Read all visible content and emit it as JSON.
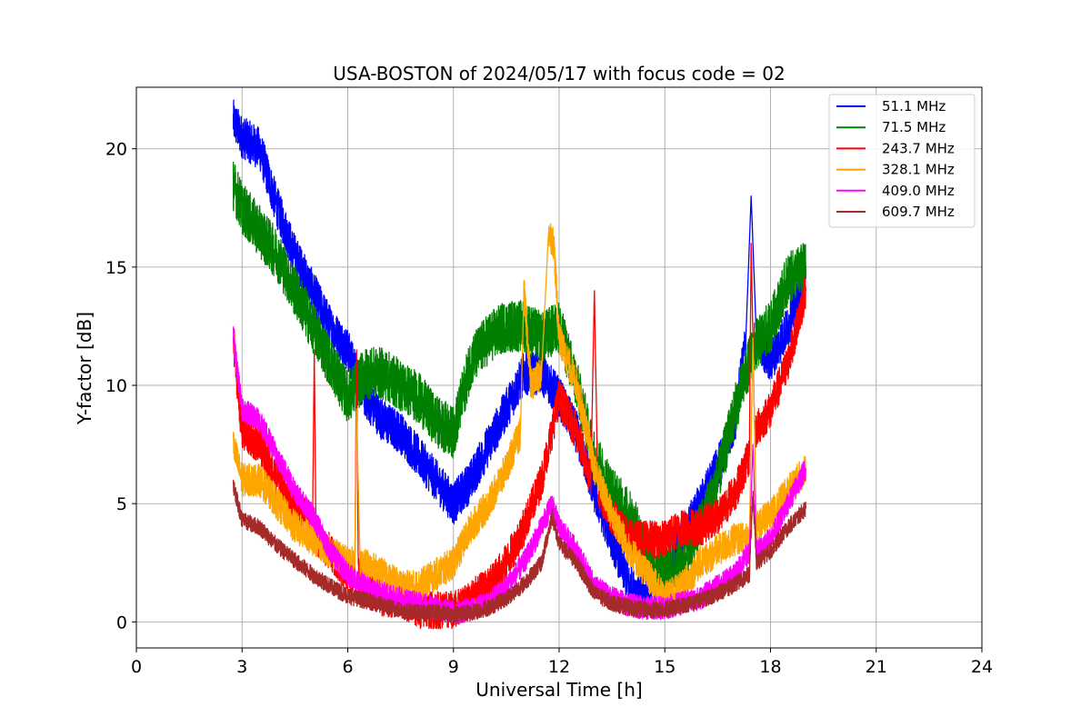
{
  "chart_data": {
    "type": "line",
    "title": "USA-BOSTON of 2024/05/17 with focus code = 02",
    "xlabel": "Universal Time [h]",
    "ylabel": "Y-factor [dB]",
    "xlim": [
      0,
      24
    ],
    "ylim": [
      -1.1,
      22.6
    ],
    "xticks": [
      0,
      3,
      6,
      9,
      12,
      15,
      18,
      21,
      24
    ],
    "yticks": [
      0,
      5,
      10,
      15,
      20
    ],
    "grid": true,
    "legend_position": "top-right",
    "series": [
      {
        "name": " 51.1 MHz",
        "color": "#0000ff",
        "noise": 0.9,
        "x": [
          2.75,
          3.0,
          3.5,
          4.0,
          4.5,
          5.0,
          5.5,
          6.0,
          6.5,
          7.0,
          7.5,
          8.0,
          8.5,
          9.0,
          9.5,
          10.0,
          10.5,
          11.0,
          11.5,
          12.0,
          12.5,
          13.0,
          13.5,
          14.0,
          14.5,
          15.0,
          15.5,
          16.0,
          16.5,
          17.0,
          17.3,
          17.45,
          17.6,
          18.0,
          18.5,
          19.0
        ],
        "y": [
          21.2,
          20.5,
          20.0,
          17.5,
          15.5,
          14.0,
          12.5,
          11.5,
          9.5,
          8.5,
          8.0,
          7.0,
          6.0,
          5.0,
          6.0,
          7.5,
          9.0,
          10.5,
          10.5,
          9.5,
          8.0,
          5.5,
          3.5,
          1.5,
          1.0,
          2.0,
          3.5,
          5.0,
          6.5,
          8.5,
          12.0,
          18.0,
          12.0,
          11.0,
          12.5,
          14.5
        ]
      },
      {
        "name": " 71.5 MHz",
        "color": "#008000",
        "noise": 1.1,
        "x": [
          2.75,
          3.0,
          3.5,
          4.0,
          4.5,
          5.0,
          5.5,
          6.0,
          6.5,
          7.0,
          7.5,
          8.0,
          8.5,
          9.0,
          9.5,
          10.0,
          10.5,
          11.0,
          11.5,
          12.0,
          12.5,
          13.0,
          13.5,
          14.0,
          14.5,
          15.0,
          15.5,
          16.0,
          16.5,
          17.0,
          17.5,
          18.0,
          18.5,
          19.0
        ],
        "y": [
          18.5,
          17.5,
          16.5,
          15.5,
          14.0,
          12.5,
          11.0,
          9.5,
          10.5,
          10.5,
          10.0,
          9.5,
          8.5,
          8.0,
          11.0,
          12.0,
          12.5,
          12.5,
          12.0,
          12.5,
          10.0,
          7.0,
          5.5,
          4.5,
          3.0,
          2.0,
          2.5,
          4.0,
          6.0,
          9.0,
          11.5,
          12.5,
          14.5,
          15.0
        ]
      },
      {
        "name": "243.7 MHz",
        "color": "#ff0000",
        "noise": 0.8,
        "x": [
          2.75,
          3.0,
          3.5,
          4.0,
          4.5,
          5.0,
          5.05,
          5.1,
          5.5,
          6.0,
          6.2,
          6.25,
          6.3,
          6.5,
          7.0,
          7.5,
          8.0,
          8.5,
          9.0,
          9.5,
          10.0,
          10.5,
          11.0,
          11.5,
          12.0,
          12.5,
          12.9,
          13.0,
          13.1,
          13.5,
          14.0,
          14.5,
          15.0,
          15.5,
          16.0,
          16.5,
          17.0,
          17.4,
          17.45,
          17.55,
          18.0,
          18.5,
          19.0
        ],
        "y": [
          12.0,
          8.0,
          7.5,
          6.0,
          5.0,
          4.0,
          11.5,
          3.5,
          3.0,
          2.0,
          2.0,
          11.5,
          2.0,
          1.5,
          1.0,
          1.0,
          0.5,
          0.5,
          0.5,
          1.0,
          1.5,
          2.5,
          4.0,
          6.0,
          9.5,
          8.0,
          6.0,
          14.0,
          5.5,
          4.5,
          3.5,
          3.5,
          3.5,
          4.0,
          4.0,
          4.5,
          5.5,
          7.0,
          16.0,
          8.0,
          9.0,
          11.0,
          14.0
        ]
      },
      {
        "name": "328.1 MHz",
        "color": "#ffa500",
        "noise": 0.7,
        "x": [
          2.75,
          3.0,
          3.5,
          4.0,
          4.5,
          5.0,
          5.5,
          6.0,
          6.2,
          6.25,
          6.35,
          7.0,
          7.5,
          8.0,
          8.5,
          9.0,
          9.5,
          10.0,
          10.5,
          10.9,
          11.0,
          11.2,
          11.5,
          11.7,
          11.85,
          12.0,
          12.5,
          13.0,
          13.5,
          14.0,
          14.5,
          15.0,
          15.5,
          16.0,
          16.5,
          17.0,
          17.4,
          17.5,
          17.6,
          18.0,
          18.5,
          19.0
        ],
        "y": [
          7.5,
          6.0,
          6.0,
          5.0,
          4.0,
          3.5,
          3.0,
          2.5,
          2.5,
          9.0,
          2.5,
          2.0,
          1.5,
          1.5,
          2.0,
          2.5,
          4.0,
          5.0,
          6.5,
          8.0,
          14.0,
          10.0,
          10.5,
          16.5,
          16.0,
          12.0,
          10.0,
          6.5,
          4.5,
          3.0,
          2.0,
          1.0,
          1.5,
          2.5,
          3.0,
          3.5,
          3.5,
          12.0,
          4.0,
          4.5,
          5.5,
          6.5
        ]
      },
      {
        "name": "409.0 MHz",
        "color": "#ff00ff",
        "noise": 0.5,
        "x": [
          2.75,
          3.0,
          3.5,
          4.0,
          4.5,
          5.0,
          5.5,
          6.0,
          6.5,
          7.0,
          7.5,
          8.0,
          8.5,
          9.0,
          9.5,
          10.0,
          10.5,
          11.0,
          11.5,
          11.8,
          12.0,
          12.5,
          13.0,
          13.5,
          14.0,
          14.5,
          15.0,
          15.5,
          16.0,
          16.5,
          17.0,
          17.4,
          17.5,
          17.6,
          18.0,
          18.5,
          19.0
        ],
        "y": [
          12.0,
          9.0,
          8.5,
          7.0,
          5.5,
          4.5,
          3.0,
          2.0,
          1.5,
          1.2,
          1.0,
          0.8,
          0.6,
          0.4,
          0.5,
          0.8,
          1.5,
          2.5,
          4.0,
          5.0,
          4.0,
          3.0,
          1.5,
          1.0,
          0.7,
          0.6,
          0.6,
          0.8,
          1.0,
          1.5,
          2.0,
          3.0,
          7.5,
          3.0,
          3.5,
          5.0,
          6.5
        ]
      },
      {
        "name": "609.7 MHz",
        "color": "#a52a2a",
        "noise": 0.35,
        "x": [
          2.75,
          3.0,
          3.5,
          4.0,
          4.5,
          5.0,
          5.5,
          6.0,
          6.5,
          7.0,
          7.5,
          8.0,
          8.5,
          9.0,
          9.5,
          10.0,
          10.5,
          11.0,
          11.5,
          11.8,
          12.0,
          12.5,
          13.0,
          13.5,
          14.0,
          14.5,
          15.0,
          15.5,
          16.0,
          16.5,
          17.0,
          17.4,
          17.5,
          17.6,
          18.0,
          18.5,
          19.0
        ],
        "y": [
          5.8,
          4.3,
          4.0,
          3.2,
          2.6,
          2.0,
          1.5,
          1.1,
          0.9,
          0.7,
          0.5,
          0.4,
          0.4,
          0.3,
          0.4,
          0.6,
          1.0,
          1.6,
          2.5,
          4.5,
          3.3,
          2.5,
          1.2,
          0.8,
          0.6,
          0.5,
          0.5,
          0.7,
          0.9,
          1.2,
          1.6,
          2.0,
          5.5,
          2.5,
          3.0,
          4.0,
          4.8
        ]
      }
    ]
  }
}
